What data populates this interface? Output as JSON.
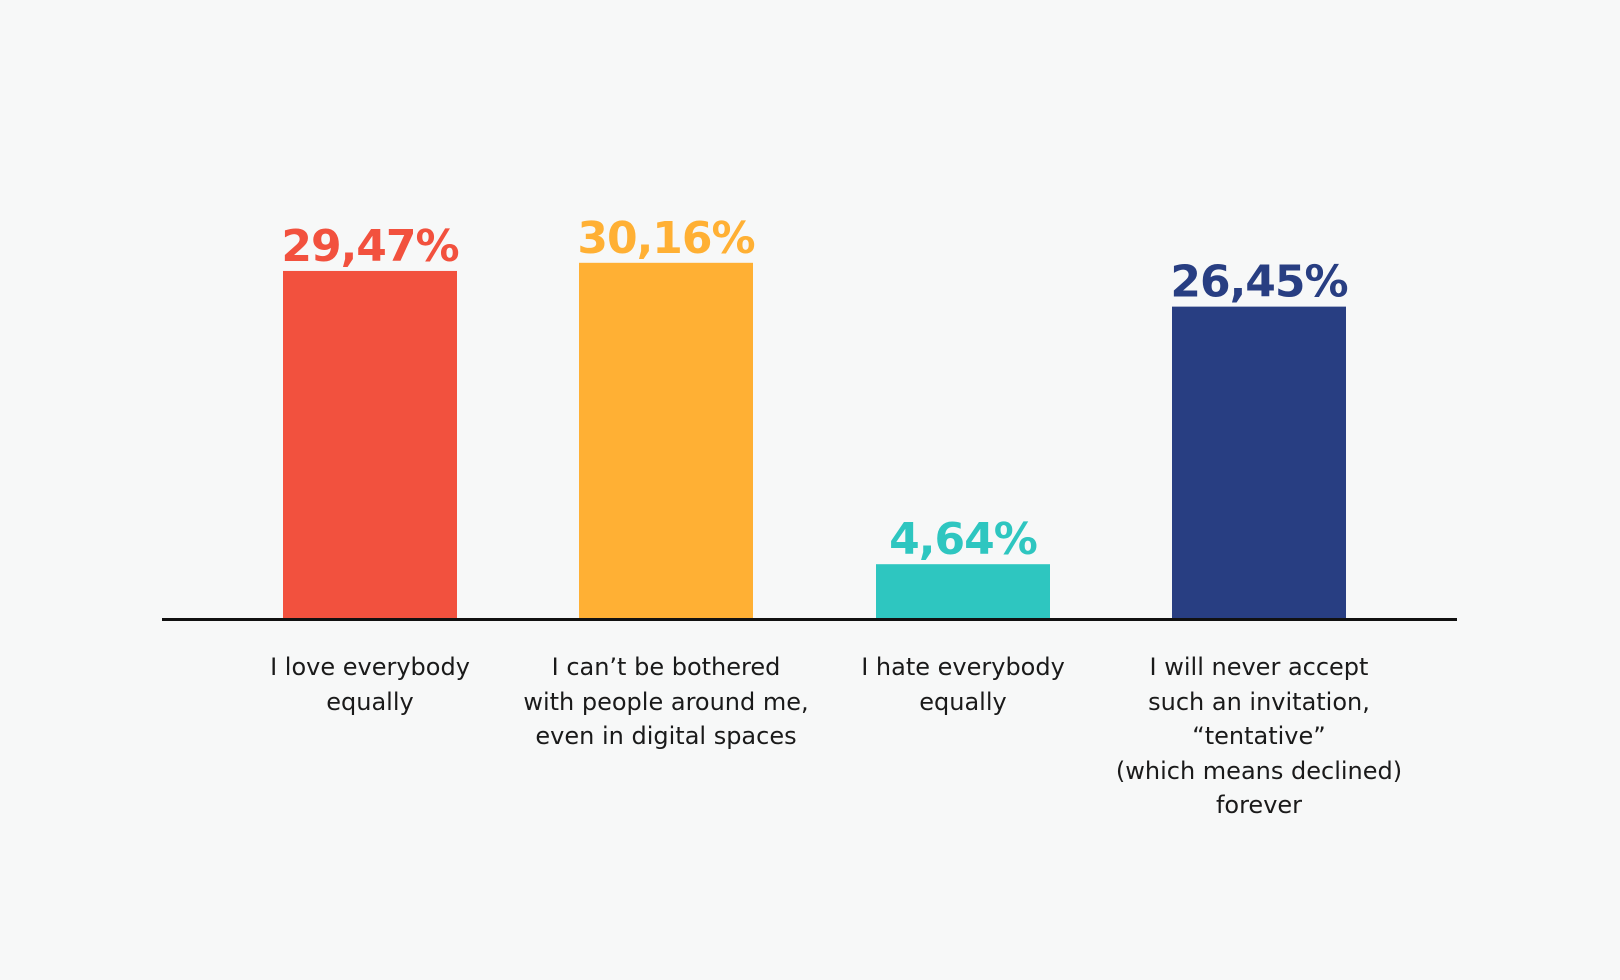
{
  "chart_data": {
    "type": "bar",
    "title": "",
    "xlabel": "",
    "ylabel": "",
    "ylim": [
      0,
      35
    ],
    "grid": false,
    "categories": [
      "I love everybody\nequally",
      "I can’t be bothered\nwith people around me,\neven in digital spaces",
      "I hate everybody\nequally",
      "I will never accept\nsuch an invitation,\n“tentative”\n(which means declined)\nforever"
    ],
    "values": [
      29.47,
      30.16,
      4.64,
      26.45
    ],
    "data_labels": [
      "29,47%",
      "30,16%",
      "4,64%",
      "26,45%"
    ],
    "colors": [
      "#f2513e",
      "#ffb034",
      "#2ec6c0",
      "#283e82"
    ]
  },
  "axis_color": "#111111",
  "background": "#f7f8f8"
}
